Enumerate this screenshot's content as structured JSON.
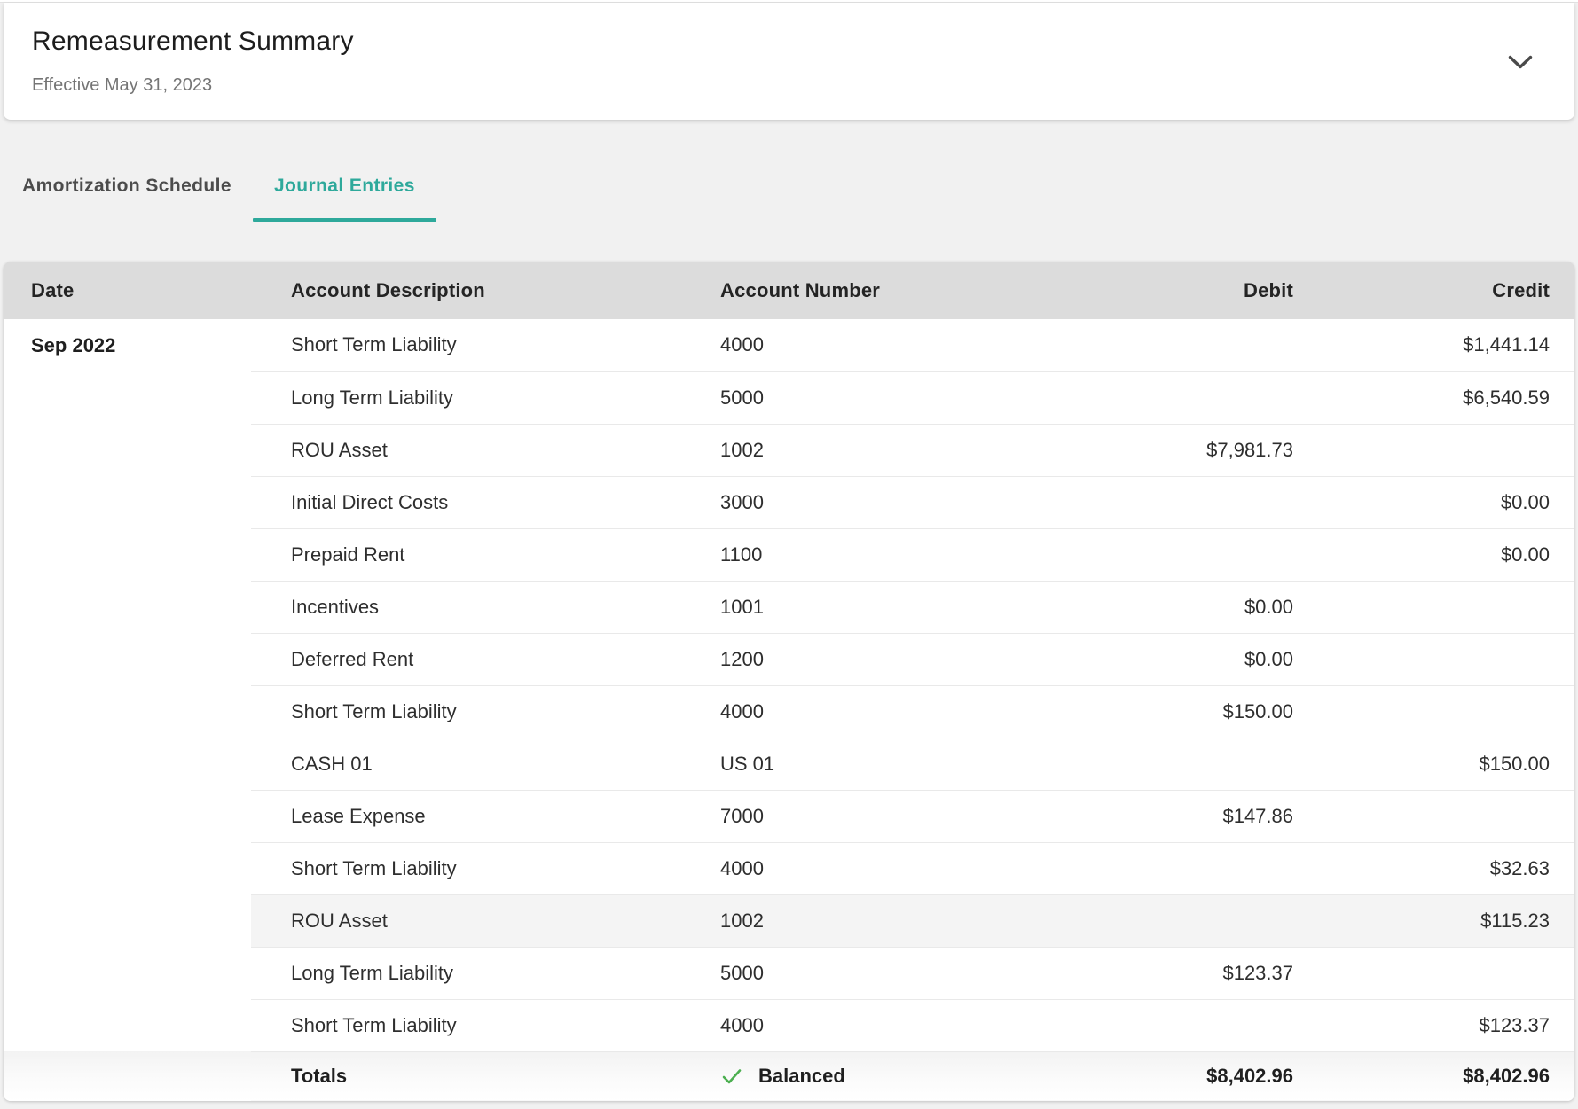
{
  "summary_card": {
    "title": "Remeasurement Summary",
    "subtitle": "Effective May 31, 2023"
  },
  "tabs": [
    {
      "label": "Amortization Schedule",
      "active": false
    },
    {
      "label": "Journal Entries",
      "active": true
    }
  ],
  "colors": {
    "accent_teal": "#2ea99b",
    "check_green": "#4caf50",
    "header_gray": "#dcdcdc"
  },
  "icons": {
    "chevron": "chevron-down-icon",
    "balanced_check": "check-icon"
  },
  "table": {
    "headers": [
      "Date",
      "Account Description",
      "Account Number",
      "Debit",
      "Credit"
    ],
    "date_group": "Sep 2022",
    "rows": [
      {
        "description": "Short Term Liability",
        "account": "4000",
        "debit": "",
        "credit": "$1,441.14",
        "highlighted": false
      },
      {
        "description": "Long Term Liability",
        "account": "5000",
        "debit": "",
        "credit": "$6,540.59",
        "highlighted": false
      },
      {
        "description": "ROU Asset",
        "account": "1002",
        "debit": "$7,981.73",
        "credit": "",
        "highlighted": false
      },
      {
        "description": "Initial Direct Costs",
        "account": "3000",
        "debit": "",
        "credit": "$0.00",
        "highlighted": false
      },
      {
        "description": "Prepaid Rent",
        "account": "1100",
        "debit": "",
        "credit": "$0.00",
        "highlighted": false
      },
      {
        "description": "Incentives",
        "account": "1001",
        "debit": "$0.00",
        "credit": "",
        "highlighted": false
      },
      {
        "description": "Deferred Rent",
        "account": "1200",
        "debit": "$0.00",
        "credit": "",
        "highlighted": false
      },
      {
        "description": "Short Term Liability",
        "account": "4000",
        "debit": "$150.00",
        "credit": "",
        "highlighted": false
      },
      {
        "description": "CASH 01",
        "account": "US 01",
        "debit": "",
        "credit": "$150.00",
        "highlighted": false
      },
      {
        "description": "Lease Expense",
        "account": "7000",
        "debit": "$147.86",
        "credit": "",
        "highlighted": false
      },
      {
        "description": "Short Term Liability",
        "account": "4000",
        "debit": "",
        "credit": "$32.63",
        "highlighted": false
      },
      {
        "description": "ROU Asset",
        "account": "1002",
        "debit": "",
        "credit": "$115.23",
        "highlighted": true
      },
      {
        "description": "Long Term Liability",
        "account": "5000",
        "debit": "$123.37",
        "credit": "",
        "highlighted": false
      },
      {
        "description": "Short Term Liability",
        "account": "4000",
        "debit": "",
        "credit": "$123.37",
        "highlighted": false
      }
    ],
    "totals": {
      "label": "Totals",
      "status": "Balanced",
      "debit": "$8,402.96",
      "credit": "$8,402.96"
    }
  }
}
